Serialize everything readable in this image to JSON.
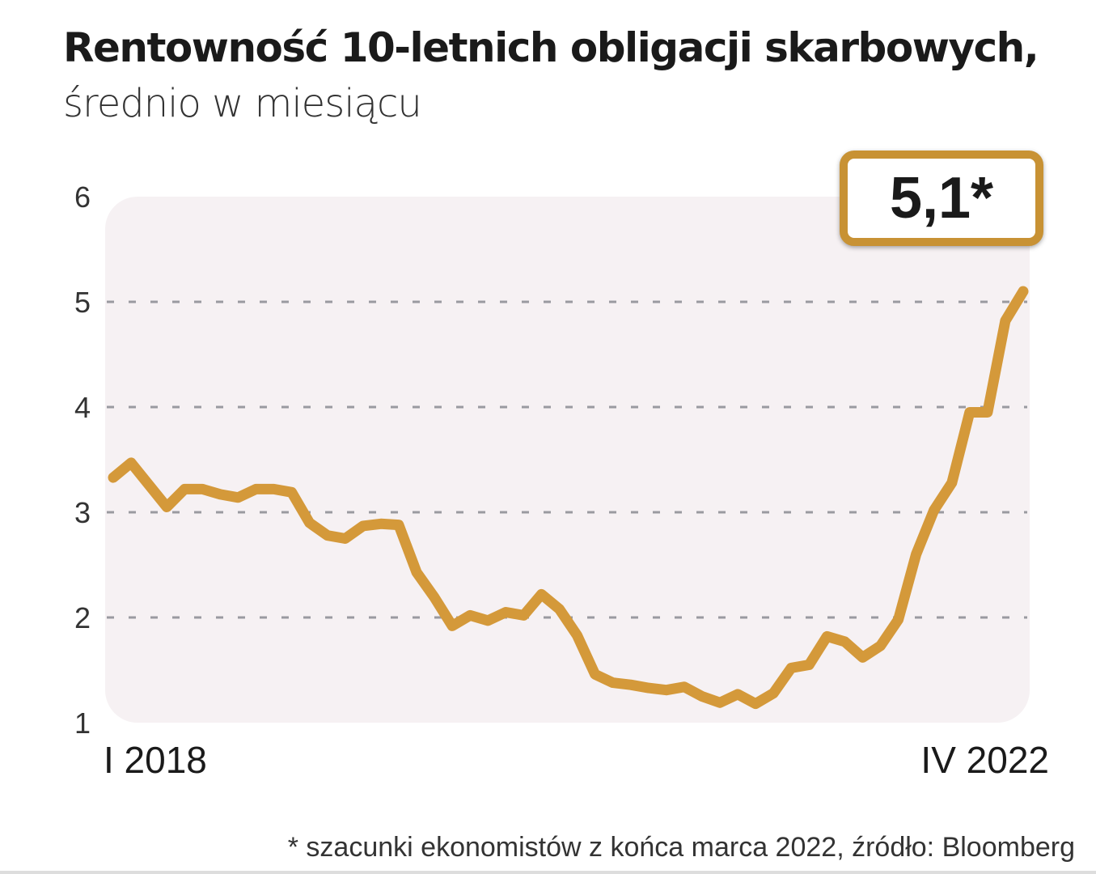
{
  "chart_data": {
    "type": "line",
    "title": "Rentowność 10-letnich obligacji skarbowych,",
    "subtitle": "średnio w miesiącu",
    "x_start": "2018-01",
    "x_end": "2022-04",
    "x_tick_labels": [
      "I 2018",
      "IV 2022"
    ],
    "y_ticks": [
      1,
      2,
      3,
      4,
      5,
      6
    ],
    "ylim": [
      1,
      6
    ],
    "grid": "horizontal dashed",
    "line_color": "#d4993a",
    "values": [
      3.33,
      3.47,
      3.26,
      3.05,
      3.22,
      3.22,
      3.17,
      3.14,
      3.22,
      3.22,
      3.19,
      2.9,
      2.78,
      2.75,
      2.87,
      2.89,
      2.88,
      2.43,
      2.19,
      1.92,
      2.02,
      1.97,
      2.05,
      2.02,
      2.22,
      2.08,
      1.83,
      1.46,
      1.38,
      1.36,
      1.33,
      1.31,
      1.34,
      1.25,
      1.19,
      1.27,
      1.18,
      1.28,
      1.52,
      1.55,
      1.82,
      1.77,
      1.62,
      1.73,
      1.98,
      2.6,
      3.02,
      3.28,
      3.95,
      3.95,
      4.82,
      5.1
    ],
    "callout": "5,1*",
    "footnote": "* szacunki ekonomistów z końca marca 2022, źródło: Bloomberg"
  }
}
